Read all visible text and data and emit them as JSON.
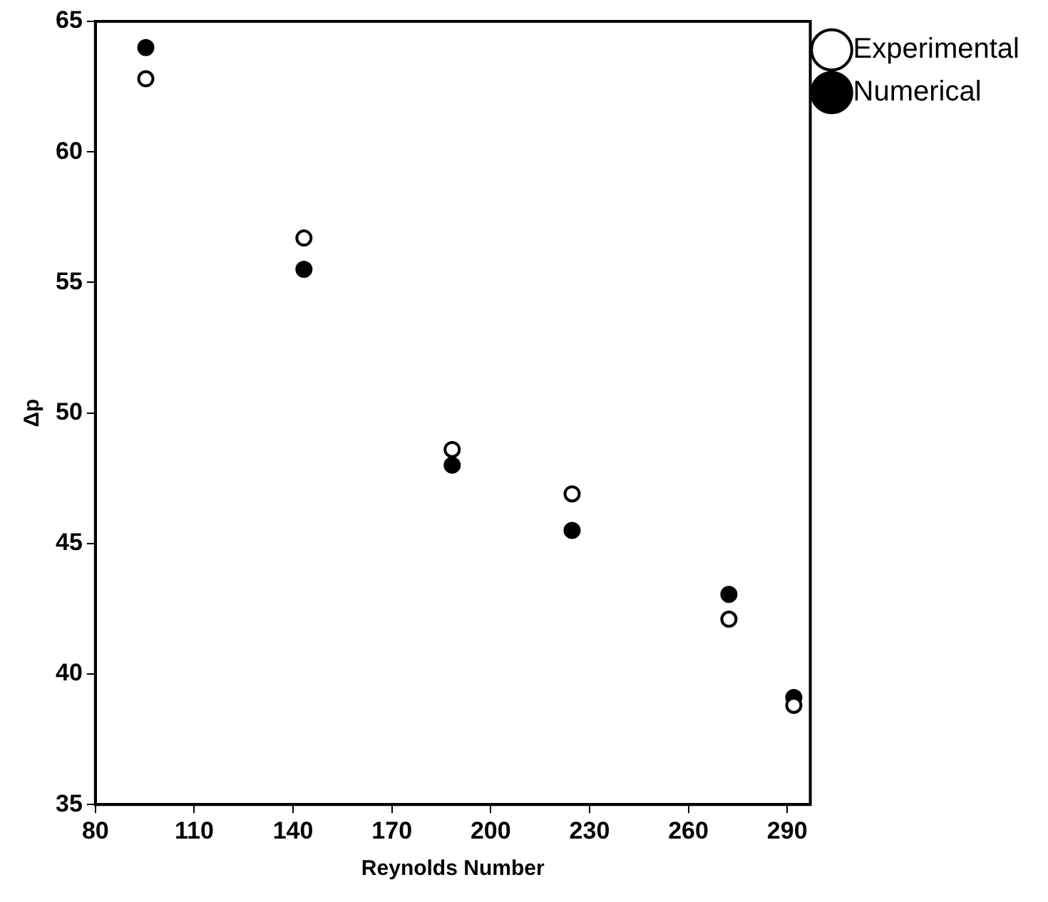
{
  "chart_data": {
    "type": "scatter",
    "xlabel": "Reynolds Number",
    "ylabel": "Δp",
    "xlim": [
      80,
      297
    ],
    "xticks": [
      80,
      110,
      140,
      170,
      200,
      230,
      260,
      290
    ],
    "ylim": [
      35,
      65
    ],
    "yticks": [
      35,
      40,
      45,
      50,
      55,
      60,
      65
    ],
    "grid": false,
    "legend": "top right",
    "marker": "circle",
    "series": [
      {
        "name": "Experimental",
        "color": "#000000",
        "x": [
          95.3,
          143.3,
          188.3,
          224.7,
          272.3,
          292
        ],
        "values": [
          62.8,
          56.7,
          48.6,
          46.9,
          42.1,
          38.8
        ]
      },
      {
        "name": "Numerical",
        "color": "#000000",
        "x": [
          95.3,
          143.3,
          188.3,
          224.7,
          272.3,
          292
        ],
        "values": [
          64.0,
          55.5,
          48.0,
          45.5,
          43.05,
          39.1
        ]
      }
    ]
  }
}
